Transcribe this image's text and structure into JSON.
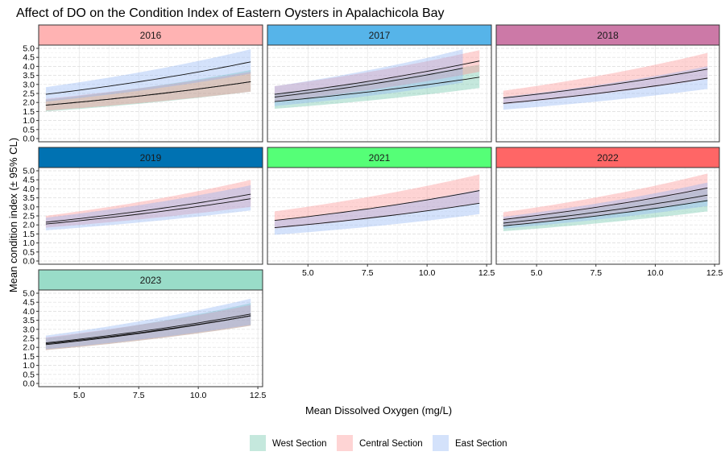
{
  "chart_data": {
    "type": "area",
    "title": "Affect of DO on the Condition Index of Eastern Oysters in Apalachicola Bay",
    "xlabel": "Mean Dissolved Oxygen (mg/L)",
    "ylabel": "Mean condition index (± 95% CL)",
    "xlim": [
      3.3,
      12.7
    ],
    "ylim": [
      0,
      5
    ],
    "x_ticks": [
      "5.0",
      "7.5",
      "10.0",
      "12.5"
    ],
    "y_ticks": [
      "0.0",
      "0.5",
      "1.0",
      "1.5",
      "2.0",
      "2.5",
      "3.0",
      "3.5",
      "4.0",
      "4.5",
      "5.0"
    ],
    "grid": true,
    "legend_position": "bottom",
    "legend": [
      {
        "key": "west",
        "label": "West Section",
        "color": "#66c2a5"
      },
      {
        "key": "central",
        "label": "Central Section",
        "color": "#fc8d8d"
      },
      {
        "key": "east",
        "label": "East Section",
        "color": "#8fb4f5"
      }
    ],
    "panels": [
      {
        "year": "2016",
        "strip_color": "#ffb3b3",
        "series": [
          {
            "section": "west",
            "x": [
              3.6,
              12.2
            ],
            "fit": [
              1.85,
              3.15
            ],
            "lower": [
              1.5,
              2.6
            ],
            "upper": [
              2.15,
              3.8
            ]
          },
          {
            "section": "central",
            "x": [
              3.6,
              12.2
            ],
            "fit": [
              1.85,
              3.15
            ],
            "lower": [
              1.55,
              2.6
            ],
            "upper": [
              2.2,
              3.7
            ]
          },
          {
            "section": "east",
            "x": [
              3.6,
              12.2
            ],
            "fit": [
              2.45,
              4.25
            ],
            "lower": [
              2.05,
              3.6
            ],
            "upper": [
              2.85,
              4.95
            ]
          }
        ]
      },
      {
        "year": "2017",
        "strip_color": "#56b4e9",
        "series": [
          {
            "section": "west",
            "x": [
              3.6,
              12.2
            ],
            "fit": [
              2.05,
              3.4
            ],
            "lower": [
              1.65,
              2.8
            ],
            "upper": [
              2.5,
              4.1
            ]
          },
          {
            "section": "central",
            "x": [
              3.6,
              12.2
            ],
            "fit": [
              2.45,
              4.3
            ],
            "lower": [
              2.05,
              3.7
            ],
            "upper": [
              2.9,
              4.9
            ]
          },
          {
            "section": "east",
            "x": [
              3.6,
              11.5
            ],
            "fit": [
              2.3,
              3.9
            ],
            "lower": [
              1.8,
              3.1
            ],
            "upper": [
              2.9,
              4.95
            ]
          }
        ]
      },
      {
        "year": "2018",
        "strip_color": "#cc79a7",
        "series": [
          {
            "section": "central",
            "x": [
              3.6,
              12.2
            ],
            "fit": [
              2.25,
              3.85
            ],
            "lower": [
              1.9,
              3.3
            ],
            "upper": [
              2.65,
              4.75
            ]
          },
          {
            "section": "east",
            "x": [
              3.6,
              12.2
            ],
            "fit": [
              1.95,
              3.35
            ],
            "lower": [
              1.6,
              2.75
            ],
            "upper": [
              2.3,
              4.0
            ]
          }
        ]
      },
      {
        "year": "2019",
        "strip_color": "#0072b2",
        "series": [
          {
            "section": "central",
            "x": [
              3.6,
              12.2
            ],
            "fit": [
              2.15,
              3.7
            ],
            "lower": [
              1.85,
              3.0
            ],
            "upper": [
              2.5,
              4.5
            ]
          },
          {
            "section": "east",
            "x": [
              3.6,
              12.2
            ],
            "fit": [
              2.05,
              3.45
            ],
            "lower": [
              1.7,
              2.8
            ],
            "upper": [
              2.4,
              4.2
            ]
          }
        ]
      },
      {
        "year": "2021",
        "strip_color": "#55ff77",
        "series": [
          {
            "section": "central",
            "x": [
              3.6,
              12.2
            ],
            "fit": [
              2.25,
              3.9
            ],
            "lower": [
              1.8,
              3.2
            ],
            "upper": [
              2.75,
              4.8
            ]
          },
          {
            "section": "east",
            "x": [
              3.6,
              12.2
            ],
            "fit": [
              1.85,
              3.2
            ],
            "lower": [
              1.45,
              2.6
            ],
            "upper": [
              2.25,
              3.95
            ]
          }
        ]
      },
      {
        "year": "2022",
        "strip_color": "#ff6666",
        "series": [
          {
            "section": "west",
            "x": [
              3.6,
              12.2
            ],
            "fit": [
              1.95,
              3.35
            ],
            "lower": [
              1.65,
              2.75
            ],
            "upper": [
              2.25,
              4.0
            ]
          },
          {
            "section": "central",
            "x": [
              3.6,
              12.2
            ],
            "fit": [
              2.3,
              4.05
            ],
            "lower": [
              1.95,
              3.4
            ],
            "upper": [
              2.7,
              4.85
            ]
          },
          {
            "section": "east",
            "x": [
              3.6,
              12.2
            ],
            "fit": [
              2.1,
              3.65
            ],
            "lower": [
              1.8,
              3.05
            ],
            "upper": [
              2.45,
              4.35
            ]
          }
        ]
      },
      {
        "year": "2023",
        "strip_color": "#99dcc8",
        "series": [
          {
            "section": "west",
            "x": [
              3.6,
              12.2
            ],
            "fit": [
              2.15,
              3.75
            ],
            "lower": [
              1.85,
              3.2
            ],
            "upper": [
              2.5,
              4.45
            ]
          },
          {
            "section": "central",
            "x": [
              3.6,
              12.2
            ],
            "fit": [
              2.2,
              3.75
            ],
            "lower": [
              1.85,
              3.2
            ],
            "upper": [
              2.55,
              4.35
            ]
          },
          {
            "section": "east",
            "x": [
              3.6,
              12.2
            ],
            "fit": [
              2.25,
              3.85
            ],
            "lower": [
              1.9,
              3.25
            ],
            "upper": [
              2.65,
              4.7
            ]
          }
        ]
      }
    ]
  }
}
